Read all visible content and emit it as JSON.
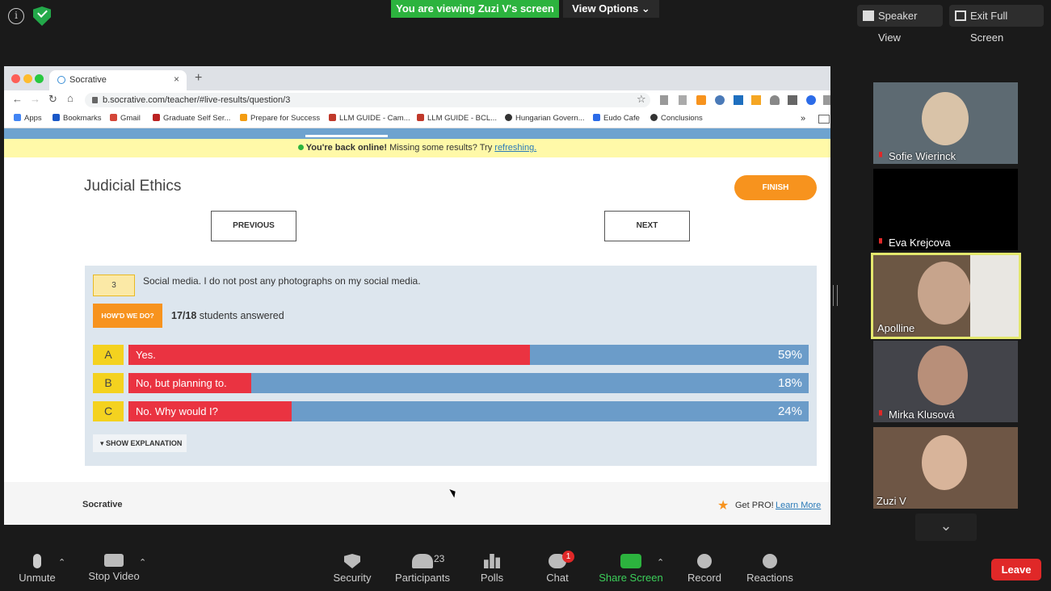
{
  "zoom_top": {
    "viewing_banner": "You are viewing Zuzi V's screen",
    "view_options": "View Options",
    "speaker_view": "Speaker View",
    "exit_full_screen": "Exit Full Screen"
  },
  "browser": {
    "tab_title": "Socrative",
    "url": "b.socrative.com/teacher/#live-results/question/3",
    "bookmarks": [
      "Apps",
      "Bookmarks",
      "Gmail",
      "Graduate Self Ser...",
      "Prepare for Success",
      "LLM GUIDE - Cam...",
      "LLM GUIDE - BCL...",
      "Hungarian Govern...",
      "Eudo Cafe",
      "Conclusions"
    ],
    "more": "»"
  },
  "socrative": {
    "online_notice_bold": "You're back online!",
    "online_notice_text": "Missing some results? Try",
    "refresh_link": "refreshing.",
    "title": "Judicial Ethics",
    "finish": "FINISH",
    "previous": "PREVIOUS",
    "next": "NEXT",
    "question_number": "3",
    "question_text": "Social media. I do not post any photographs on my social media.",
    "howd_we_do": "HOW'D WE DO?",
    "answered_count": "17/18",
    "answered_text": "students answered",
    "show_explanation": "▾ SHOW EXPLANATION",
    "footer_brand": "Socrative",
    "get_pro": "Get PRO!",
    "learn_more": "Learn More",
    "answers": [
      {
        "letter": "A",
        "text": "Yes.",
        "percent_label": "59%",
        "percent": 59
      },
      {
        "letter": "B",
        "text": "No, but planning to.",
        "percent_label": "18%",
        "percent": 18
      },
      {
        "letter": "C",
        "text": "No. Why would I?",
        "percent_label": "24%",
        "percent": 24
      }
    ],
    "colors": {
      "finish": "#f7931e",
      "bar_fill": "#ea3341",
      "bar_bg": "#6b9cc9",
      "letter_bg": "#f4d21f",
      "panel": "#dde6ee"
    }
  },
  "participants": [
    {
      "name": "Sofie Wierinck",
      "muted": true
    },
    {
      "name": "Eva Krejcova",
      "muted": true
    },
    {
      "name": "Apolline",
      "muted": false,
      "active_speaker": true
    },
    {
      "name": "Mirka Klusová",
      "muted": true
    },
    {
      "name": "Zuzi V",
      "muted": false
    }
  ],
  "toolbar": {
    "unmute": "Unmute",
    "stop_video": "Stop Video",
    "security": "Security",
    "participants": "Participants",
    "participants_count": "23",
    "polls": "Polls",
    "chat": "Chat",
    "chat_badge": "1",
    "share_screen": "Share Screen",
    "record": "Record",
    "reactions": "Reactions",
    "leave": "Leave"
  }
}
